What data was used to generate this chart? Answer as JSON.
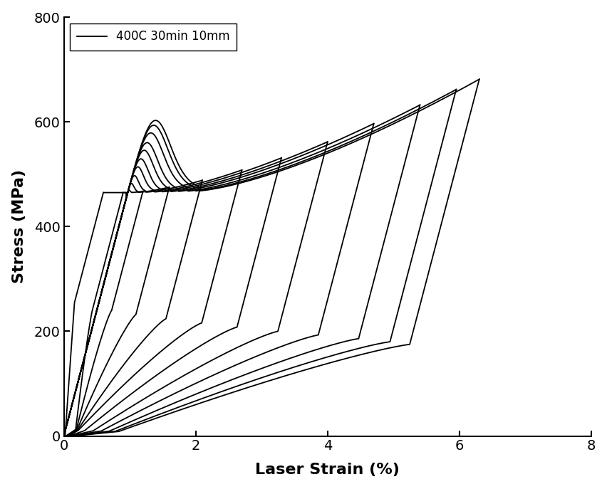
{
  "xlabel": "Laser Strain (%)",
  "ylabel": "Stress (MPa)",
  "legend_label": "400C 30min 10mm",
  "xlim": [
    0,
    8
  ],
  "ylim": [
    0,
    800
  ],
  "xticks": [
    0,
    2,
    4,
    6,
    8
  ],
  "yticks": [
    0,
    200,
    400,
    600,
    800
  ],
  "background_color": "#ffffff",
  "line_color": "#000000",
  "line_width": 1.3,
  "label_fontsize": 16,
  "tick_fontsize": 14,
  "max_strains": [
    0.6,
    0.9,
    1.2,
    1.6,
    2.1,
    2.7,
    3.3,
    4.0,
    4.7,
    5.4,
    5.95,
    6.3
  ],
  "E_loading": 480,
  "sigma_upper": 465,
  "sigma_lower_list": [
    255,
    248,
    240,
    232,
    224,
    216,
    208,
    200,
    193,
    186,
    180,
    175
  ],
  "hardening_k": 28,
  "hardening_exp": 1.4,
  "plateau_end_fracs": [
    0.3,
    0.28,
    0.26,
    0.25,
    0.24,
    0.23,
    0.22,
    0.21,
    0.2,
    0.2,
    0.2,
    0.2
  ],
  "residual_strains": [
    0.02,
    0.03,
    0.04,
    0.05,
    0.06,
    0.07,
    0.08,
    0.09,
    0.1,
    0.11,
    0.12,
    0.13
  ]
}
